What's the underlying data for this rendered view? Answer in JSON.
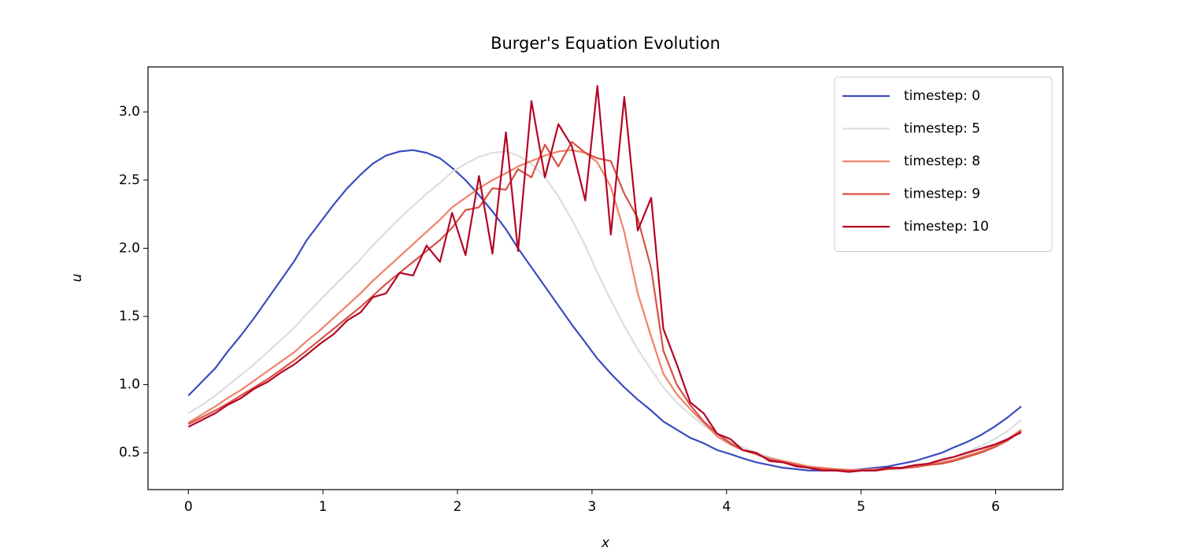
{
  "chart_data": {
    "type": "line",
    "title": "Burger's Equation Evolution",
    "xlabel": "x",
    "ylabel": "u",
    "x": [
      0,
      0.1,
      0.2,
      0.29,
      0.39,
      0.49,
      0.59,
      0.69,
      0.79,
      0.88,
      0.98,
      1.08,
      1.18,
      1.28,
      1.37,
      1.47,
      1.57,
      1.67,
      1.77,
      1.87,
      1.96,
      2.06,
      2.16,
      2.26,
      2.36,
      2.45,
      2.55,
      2.65,
      2.75,
      2.85,
      2.95,
      3.04,
      3.14,
      3.24,
      3.34,
      3.44,
      3.53,
      3.63,
      3.73,
      3.83,
      3.93,
      4.03,
      4.12,
      4.22,
      4.32,
      4.42,
      4.52,
      4.61,
      4.71,
      4.81,
      4.91,
      5.01,
      5.11,
      5.2,
      5.3,
      5.4,
      5.5,
      5.6,
      5.69,
      5.79,
      5.89,
      5.99,
      6.09,
      6.19
    ],
    "series": [
      {
        "name": "timestep: 0",
        "color": "#3b4cc0",
        "values": [
          0.92,
          1.02,
          1.12,
          1.24,
          1.36,
          1.49,
          1.63,
          1.77,
          1.91,
          2.06,
          2.19,
          2.32,
          2.44,
          2.54,
          2.62,
          2.68,
          2.71,
          2.72,
          2.7,
          2.66,
          2.59,
          2.5,
          2.39,
          2.27,
          2.14,
          2.0,
          1.86,
          1.72,
          1.58,
          1.44,
          1.31,
          1.19,
          1.08,
          0.98,
          0.89,
          0.81,
          0.73,
          0.67,
          0.61,
          0.57,
          0.52,
          0.49,
          0.46,
          0.43,
          0.41,
          0.39,
          0.38,
          0.37,
          0.37,
          0.37,
          0.37,
          0.38,
          0.39,
          0.4,
          0.42,
          0.44,
          0.47,
          0.5,
          0.54,
          0.58,
          0.63,
          0.69,
          0.76,
          0.84
        ]
      },
      {
        "name": "timestep: 5",
        "color": "#dddddd",
        "values": [
          0.79,
          0.85,
          0.92,
          0.99,
          1.07,
          1.15,
          1.24,
          1.33,
          1.42,
          1.52,
          1.62,
          1.72,
          1.82,
          1.92,
          2.02,
          2.12,
          2.22,
          2.31,
          2.4,
          2.48,
          2.56,
          2.62,
          2.67,
          2.7,
          2.71,
          2.68,
          2.62,
          2.52,
          2.38,
          2.21,
          2.02,
          1.82,
          1.62,
          1.43,
          1.26,
          1.11,
          0.98,
          0.87,
          0.78,
          0.7,
          0.64,
          0.58,
          0.54,
          0.5,
          0.47,
          0.44,
          0.42,
          0.4,
          0.39,
          0.38,
          0.375,
          0.37,
          0.375,
          0.38,
          0.39,
          0.4,
          0.42,
          0.44,
          0.47,
          0.51,
          0.55,
          0.6,
          0.66,
          0.74
        ]
      },
      {
        "name": "timestep: 8",
        "color": "#ee8468",
        "values": [
          0.72,
          0.78,
          0.84,
          0.9,
          0.96,
          1.03,
          1.1,
          1.17,
          1.24,
          1.32,
          1.4,
          1.49,
          1.58,
          1.67,
          1.76,
          1.85,
          1.94,
          2.03,
          2.12,
          2.21,
          2.3,
          2.37,
          2.44,
          2.5,
          2.55,
          2.6,
          2.64,
          2.68,
          2.71,
          2.72,
          2.7,
          2.63,
          2.45,
          2.12,
          1.67,
          1.35,
          1.08,
          0.93,
          0.82,
          0.72,
          0.62,
          0.56,
          0.52,
          0.49,
          0.46,
          0.44,
          0.42,
          0.4,
          0.39,
          0.38,
          0.375,
          0.375,
          0.38,
          0.385,
          0.39,
          0.4,
          0.42,
          0.43,
          0.45,
          0.48,
          0.51,
          0.55,
          0.6,
          0.67
        ]
      },
      {
        "name": "timestep: 9",
        "color": "#d65244",
        "values": [
          0.71,
          0.76,
          0.81,
          0.86,
          0.92,
          0.98,
          1.04,
          1.11,
          1.18,
          1.25,
          1.33,
          1.41,
          1.49,
          1.57,
          1.65,
          1.74,
          1.82,
          1.9,
          1.98,
          2.06,
          2.15,
          2.28,
          2.3,
          2.44,
          2.43,
          2.58,
          2.52,
          2.76,
          2.6,
          2.78,
          2.7,
          2.66,
          2.64,
          2.4,
          2.22,
          1.85,
          1.25,
          1.0,
          0.85,
          0.73,
          0.64,
          0.57,
          0.52,
          0.49,
          0.45,
          0.43,
          0.41,
          0.39,
          0.38,
          0.375,
          0.37,
          0.37,
          0.37,
          0.38,
          0.385,
          0.395,
          0.41,
          0.42,
          0.44,
          0.47,
          0.5,
          0.54,
          0.59,
          0.66
        ]
      },
      {
        "name": "timestep: 10",
        "color": "#b40426",
        "values": [
          0.69,
          0.74,
          0.79,
          0.85,
          0.9,
          0.97,
          1.02,
          1.09,
          1.15,
          1.22,
          1.3,
          1.37,
          1.47,
          1.53,
          1.64,
          1.67,
          1.82,
          1.8,
          2.02,
          1.9,
          2.26,
          1.95,
          2.53,
          1.96,
          2.85,
          1.98,
          3.08,
          2.52,
          2.91,
          2.75,
          2.35,
          3.19,
          2.1,
          3.11,
          2.13,
          2.37,
          1.41,
          1.15,
          0.87,
          0.79,
          0.64,
          0.6,
          0.52,
          0.5,
          0.44,
          0.43,
          0.4,
          0.39,
          0.37,
          0.37,
          0.36,
          0.37,
          0.37,
          0.39,
          0.39,
          0.41,
          0.42,
          0.45,
          0.47,
          0.5,
          0.53,
          0.56,
          0.6,
          0.65
        ]
      }
    ],
    "xlim": [
      -0.3,
      6.5
    ],
    "ylim": [
      0.23,
      3.33
    ],
    "xticks": [
      0,
      1,
      2,
      3,
      4,
      5,
      6
    ],
    "yticks": [
      0.5,
      {
        "value": 1,
        "label": "1.0"
      },
      1.5,
      {
        "value": 2,
        "label": "2.0"
      },
      2.5,
      {
        "value": 3,
        "label": "3.0"
      }
    ],
    "grid": false,
    "legend": "upper right"
  }
}
